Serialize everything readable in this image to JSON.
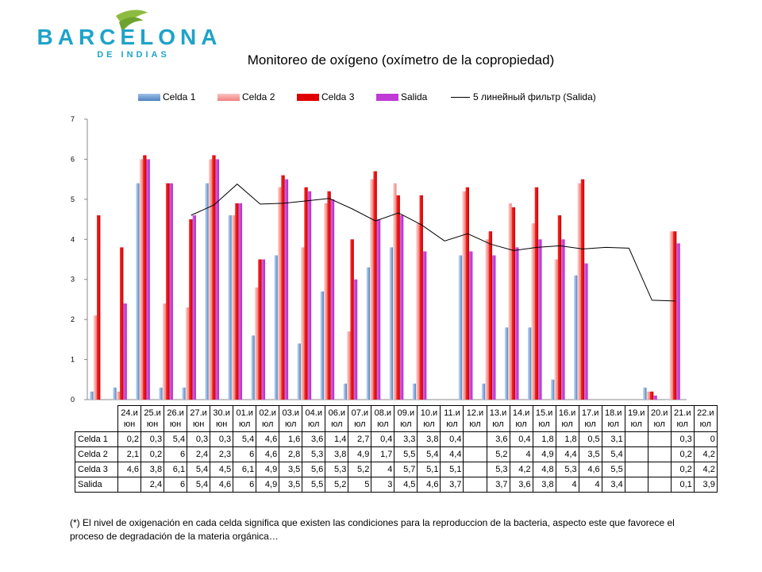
{
  "logo": {
    "line1": "BARCELONA",
    "line2": "DE INDIAS",
    "color": "#1fa3c9",
    "leaf_color": "#8dbb3f"
  },
  "chart_data": {
    "type": "bar",
    "title": "Monitoreo de oxígeno (oxímetro de la copropiedad)",
    "ylim": [
      0,
      7
    ],
    "yticks": [
      "0",
      "1",
      "2",
      "3",
      "4",
      "5",
      "6",
      "7"
    ],
    "categories": [
      "24.и\nюн",
      "25.и\nюн",
      "26.и\nюн",
      "27.и\nюн",
      "30.и\nюн",
      "01.и\nюл",
      "02.и\nюл",
      "03.и\nюл",
      "04.и\nюл",
      "06.и\nюл",
      "07.и\nюл",
      "08.и\nюл",
      "09.и\nюл",
      "10.и\nюл",
      "11.и\nюл",
      "12.и\nюл",
      "13.и\nюл",
      "14.и\nюл",
      "15.и\nюл",
      "16.и\nюл",
      "17.и\nюл",
      "18.и\nюл",
      "19.и\nюл",
      "20.и\nюл",
      "21.и\nюл",
      "22.и\nюл"
    ],
    "series": [
      {
        "name": "Celda 1",
        "color": "#4f81bd",
        "values": [
          0.2,
          0.3,
          5.4,
          0.3,
          0.3,
          5.4,
          4.6,
          1.6,
          3.6,
          1.4,
          2.7,
          0.4,
          3.3,
          3.8,
          0.4,
          null,
          3.6,
          0.4,
          1.8,
          1.8,
          0.5,
          3.1,
          null,
          null,
          0.3,
          0
        ]
      },
      {
        "name": "Celda 2",
        "color": "#f08080",
        "values": [
          2.1,
          0.2,
          6,
          2.4,
          2.3,
          6,
          4.6,
          2.8,
          5.3,
          3.8,
          4.9,
          1.7,
          5.5,
          5.4,
          4.4,
          null,
          5.2,
          4,
          4.9,
          4.4,
          3.5,
          5.4,
          null,
          null,
          0.2,
          4.2
        ]
      },
      {
        "name": "Celda 3",
        "color": "#e00000",
        "values": [
          4.6,
          3.8,
          6.1,
          5.4,
          4.5,
          6.1,
          4.9,
          3.5,
          5.6,
          5.3,
          5.2,
          4,
          5.7,
          5.1,
          5.1,
          null,
          5.3,
          4.2,
          4.8,
          5.3,
          4.6,
          5.5,
          null,
          null,
          0.2,
          4.2
        ]
      },
      {
        "name": "Salida",
        "color": "#c03ad6",
        "values": [
          null,
          2.4,
          6,
          5.4,
          4.6,
          6,
          4.9,
          3.5,
          5.5,
          5.2,
          5,
          3,
          4.5,
          4.6,
          3.7,
          null,
          3.7,
          3.6,
          3.8,
          4,
          4,
          3.4,
          null,
          null,
          0.1,
          3.9
        ]
      }
    ],
    "trendline": {
      "name": "5 линейный фильтр (Salida)",
      "color": "#000000",
      "values": [
        null,
        null,
        null,
        null,
        4.6,
        4.86,
        5.38,
        4.88,
        4.9,
        4.96,
        5.02,
        4.76,
        4.46,
        4.66,
        4.36,
        3.96,
        4.14,
        3.88,
        3.72,
        3.8,
        3.84,
        3.76,
        3.8,
        3.78,
        2.48,
        2.46
      ]
    },
    "table": {
      "row_labels": [
        "Celda 1",
        "Celda 2",
        "Celda 3",
        "Salida"
      ],
      "rows": [
        [
          "0,2",
          "0,3",
          "5,4",
          "0,3",
          "0,3",
          "5,4",
          "4,6",
          "1,6",
          "3,6",
          "1,4",
          "2,7",
          "0,4",
          "3,3",
          "3,8",
          "0,4",
          "",
          "3,6",
          "0,4",
          "1,8",
          "1,8",
          "0,5",
          "3,1",
          "",
          "",
          "0,3",
          "0"
        ],
        [
          "2,1",
          "0,2",
          "6",
          "2,4",
          "2,3",
          "6",
          "4,6",
          "2,8",
          "5,3",
          "3,8",
          "4,9",
          "1,7",
          "5,5",
          "5,4",
          "4,4",
          "",
          "5,2",
          "4",
          "4,9",
          "4,4",
          "3,5",
          "5,4",
          "",
          "",
          "0,2",
          "4,2"
        ],
        [
          "4,6",
          "3,8",
          "6,1",
          "5,4",
          "4,5",
          "6,1",
          "4,9",
          "3,5",
          "5,6",
          "5,3",
          "5,2",
          "4",
          "5,7",
          "5,1",
          "5,1",
          "",
          "5,3",
          "4,2",
          "4,8",
          "5,3",
          "4,6",
          "5,5",
          "",
          "",
          "0,2",
          "4,2"
        ],
        [
          "",
          "2,4",
          "6",
          "5,4",
          "4,6",
          "6",
          "4,9",
          "3,5",
          "5,5",
          "5,2",
          "5",
          "3",
          "4,5",
          "4,6",
          "3,7",
          "",
          "3,7",
          "3,6",
          "3,8",
          "4",
          "4",
          "3,4",
          "",
          "",
          "0,1",
          "3,9"
        ]
      ]
    }
  },
  "legend": {
    "items": [
      "Celda 1",
      "Celda 2",
      "Celda 3",
      "Salida"
    ],
    "trend_label": "5 линейный фильтр (Salida)"
  },
  "footnote": "(*) El nivel de oxigenación en cada celda significa que existen las condiciones para la reproduccion de la bacteria, aspecto este  que favorece el proceso de degradación de la  materia orgánica…"
}
